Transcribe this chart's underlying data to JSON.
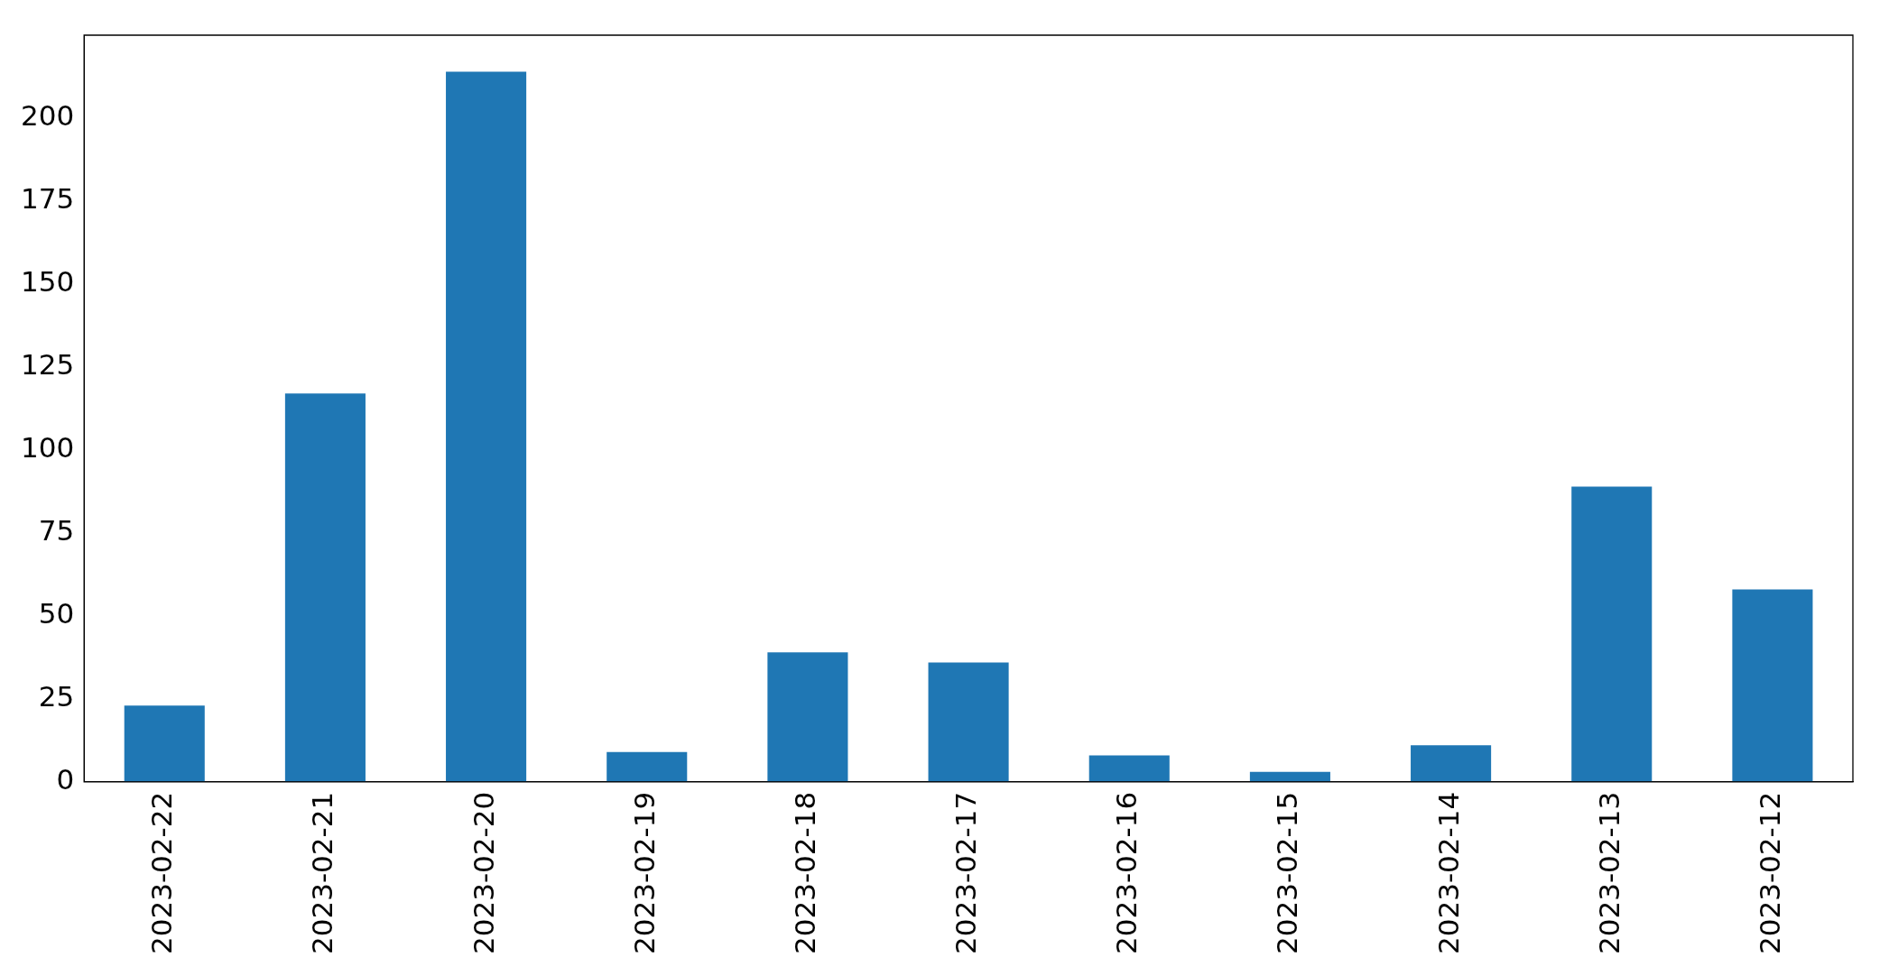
{
  "chart_data": {
    "type": "bar",
    "categories": [
      "2023-02-22",
      "2023-02-21",
      "2023-02-20",
      "2023-02-19",
      "2023-02-18",
      "2023-02-17",
      "2023-02-16",
      "2023-02-15",
      "2023-02-14",
      "2023-02-13",
      "2023-02-12"
    ],
    "values": [
      23,
      117,
      214,
      9,
      39,
      36,
      8,
      3,
      11,
      89,
      58
    ],
    "color": "#1f77b4",
    "ylim": [
      0,
      225
    ],
    "yticks": [
      0,
      25,
      50,
      75,
      100,
      125,
      150,
      175,
      200
    ]
  }
}
